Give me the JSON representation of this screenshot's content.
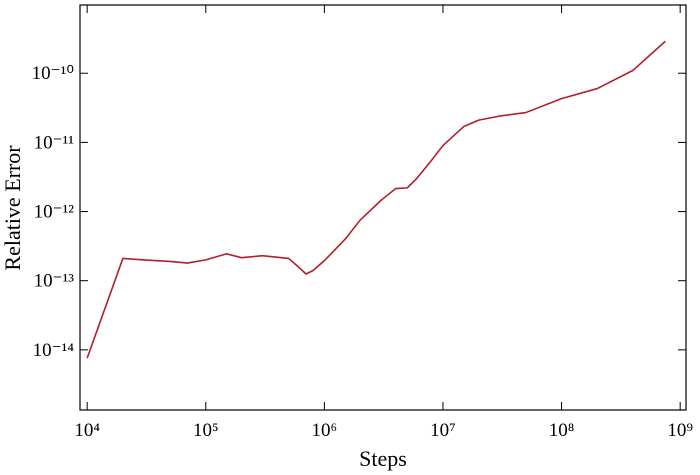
{
  "chart_data": {
    "type": "line",
    "x_label": "Steps",
    "y_label": "Relative Error",
    "xscale": "log",
    "yscale": "log",
    "xlim": [
      8700,
      1120000000
    ],
    "ylim": [
      1.35e-15,
      9.7e-10
    ],
    "xticks": [
      {
        "value": 10000,
        "label": "10⁴"
      },
      {
        "value": 100000,
        "label": "10⁵"
      },
      {
        "value": 1000000,
        "label": "10⁶"
      },
      {
        "value": 10000000,
        "label": "10⁷"
      },
      {
        "value": 100000000,
        "label": "10⁸"
      },
      {
        "value": 1000000000,
        "label": "10⁹"
      }
    ],
    "yticks": [
      {
        "value": 1e-14,
        "label": "10⁻¹⁴"
      },
      {
        "value": 1e-13,
        "label": "10⁻¹³"
      },
      {
        "value": 1e-12,
        "label": "10⁻¹²"
      },
      {
        "value": 1e-11,
        "label": "10⁻¹¹"
      },
      {
        "value": 1e-10,
        "label": "10⁻¹⁰"
      }
    ],
    "series": [
      {
        "color": "#b0202a",
        "x": [
          10000,
          20000,
          30000,
          50000,
          70000,
          100000,
          150000,
          200000,
          300000,
          500000,
          600000,
          700000,
          800000,
          1000000,
          1500000,
          2000000,
          3000000,
          4000000,
          5000000,
          6000000,
          8000000,
          10000000,
          15000000,
          20000000,
          30000000,
          50000000,
          100000000,
          200000000,
          400000000,
          750000000
        ],
        "values": [
          7.6e-15,
          2.1e-13,
          2e-13,
          1.9e-13,
          1.8e-13,
          2e-13,
          2.45e-13,
          2.15e-13,
          2.3e-13,
          2.1e-13,
          1.6e-13,
          1.25e-13,
          1.4e-13,
          1.95e-13,
          4e-13,
          7.5e-13,
          1.45e-12,
          2.15e-12,
          2.2e-12,
          3e-12,
          5.5e-12,
          9e-12,
          1.7e-11,
          2.1e-11,
          2.4e-11,
          2.7e-11,
          4.3e-11,
          6e-11,
          1.1e-10,
          2.9e-10
        ]
      }
    ]
  }
}
